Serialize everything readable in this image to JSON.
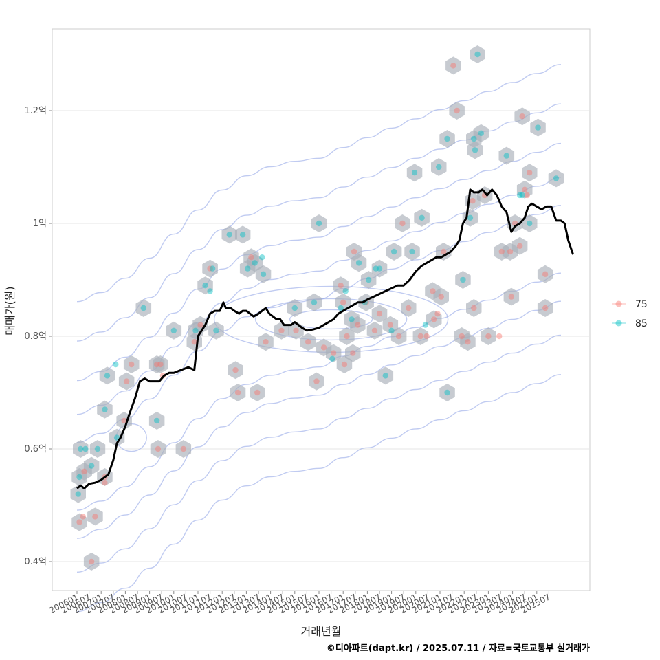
{
  "chart_data": {
    "type": "scatter",
    "xlabel": "거래년월",
    "ylabel": "매매가(원)",
    "caption": "©디아파트(dapt.kr) / 2025.07.11 / 자료=국토교통부 실거래가",
    "x_ticks": [
      "200601",
      "200607",
      "200701",
      "200707",
      "200801",
      "200807",
      "200901",
      "200907",
      "201001",
      "201007",
      "201101",
      "201107",
      "201201",
      "201207",
      "201301",
      "201307",
      "201401",
      "201407",
      "201501",
      "201507",
      "201601",
      "201607",
      "201701",
      "201707",
      "201801",
      "201807",
      "201901",
      "201907",
      "202001",
      "202007",
      "202101",
      "202107",
      "202201",
      "202207",
      "202301",
      "202307",
      "202401",
      "202407",
      "202501",
      "202507"
    ],
    "y_ticks": [
      {
        "value": 0.4,
        "label": "0.4억"
      },
      {
        "value": 0.6,
        "label": "0.6억"
      },
      {
        "value": 0.8,
        "label": "0.8억"
      },
      {
        "value": 1.0,
        "label": "1억"
      },
      {
        "value": 1.2,
        "label": "1.2억"
      }
    ],
    "ylim": [
      0.35,
      1.35
    ],
    "grid": true,
    "legend_position": "right",
    "colors": {
      "s75": "#F8766D",
      "s85": "#00BFC4",
      "hex": "#a9afb8",
      "hex_light": "#dbe8fb",
      "contour": "#8da0e6",
      "line": "#000000"
    },
    "series": [
      {
        "name": "75",
        "points": [
          [
            0.2,
            0.47
          ],
          [
            0.5,
            0.48
          ],
          [
            0.6,
            0.56
          ],
          [
            1.5,
            0.48
          ],
          [
            2.3,
            0.55
          ],
          [
            2.3,
            0.54
          ],
          [
            1.2,
            0.4
          ],
          [
            3.9,
            0.65
          ],
          [
            4.5,
            0.75
          ],
          [
            4.1,
            0.72
          ],
          [
            6.7,
            0.6
          ],
          [
            6.6,
            0.75
          ],
          [
            6.9,
            0.75
          ],
          [
            7.1,
            0.73
          ],
          [
            8.8,
            0.6
          ],
          [
            9.7,
            0.79
          ],
          [
            10.2,
            0.82
          ],
          [
            11.0,
            0.92
          ],
          [
            13.1,
            0.74
          ],
          [
            13.3,
            0.7
          ],
          [
            14.4,
            0.94
          ],
          [
            14.9,
            0.7
          ],
          [
            15.6,
            0.79
          ],
          [
            16.9,
            0.81
          ],
          [
            18.1,
            0.81
          ],
          [
            19.1,
            0.79
          ],
          [
            19.8,
            0.72
          ],
          [
            20.4,
            0.78
          ],
          [
            21.2,
            0.77
          ],
          [
            21.8,
            0.89
          ],
          [
            22.0,
            0.86
          ],
          [
            22.1,
            0.75
          ],
          [
            22.3,
            0.8
          ],
          [
            22.8,
            0.77
          ],
          [
            22.9,
            0.95
          ],
          [
            23.2,
            0.82
          ],
          [
            23.9,
            0.86
          ],
          [
            24.6,
            0.81
          ],
          [
            25.0,
            0.84
          ],
          [
            25.9,
            0.82
          ],
          [
            26.6,
            0.8
          ],
          [
            26.9,
            1.0
          ],
          [
            27.4,
            0.85
          ],
          [
            28.4,
            0.8
          ],
          [
            28.9,
            0.8
          ],
          [
            29.4,
            0.88
          ],
          [
            29.5,
            0.83
          ],
          [
            29.8,
            0.84
          ],
          [
            30.1,
            0.87
          ],
          [
            30.3,
            0.95
          ],
          [
            31.1,
            1.28
          ],
          [
            31.4,
            1.2
          ],
          [
            31.8,
            0.8
          ],
          [
            32.3,
            0.79
          ],
          [
            32.7,
            1.04
          ],
          [
            32.8,
            0.85
          ],
          [
            33.7,
            1.05
          ],
          [
            34.0,
            0.8
          ],
          [
            34.9,
            0.8
          ],
          [
            35.1,
            0.95
          ],
          [
            35.8,
            0.95
          ],
          [
            35.9,
            0.87
          ],
          [
            36.2,
            1.0
          ],
          [
            36.6,
            0.96
          ],
          [
            36.8,
            1.19
          ],
          [
            37.0,
            1.06
          ],
          [
            37.2,
            1.05
          ],
          [
            37.4,
            1.09
          ],
          [
            38.7,
            0.85
          ],
          [
            38.7,
            0.91
          ]
        ]
      },
      {
        "name": "85",
        "points": [
          [
            0.1,
            0.52
          ],
          [
            0.2,
            0.55
          ],
          [
            0.3,
            0.6
          ],
          [
            0.7,
            0.6
          ],
          [
            1.2,
            0.57
          ],
          [
            1.7,
            0.6
          ],
          [
            2.3,
            0.67
          ],
          [
            2.5,
            0.73
          ],
          [
            3.2,
            0.75
          ],
          [
            3.3,
            0.62
          ],
          [
            5.5,
            0.85
          ],
          [
            6.6,
            0.65
          ],
          [
            8.0,
            0.81
          ],
          [
            9.8,
            0.81
          ],
          [
            10.6,
            0.89
          ],
          [
            11.0,
            0.88
          ],
          [
            11.2,
            0.92
          ],
          [
            11.5,
            0.81
          ],
          [
            12.6,
            0.98
          ],
          [
            13.7,
            0.98
          ],
          [
            14.1,
            0.92
          ],
          [
            14.7,
            0.93
          ],
          [
            15.3,
            0.94
          ],
          [
            15.4,
            0.91
          ],
          [
            18.0,
            0.85
          ],
          [
            19.6,
            0.86
          ],
          [
            20.0,
            1.0
          ],
          [
            21.1,
            0.76
          ],
          [
            21.8,
            0.85
          ],
          [
            22.2,
            0.88
          ],
          [
            22.7,
            0.83
          ],
          [
            23.3,
            0.93
          ],
          [
            23.8,
            0.86
          ],
          [
            24.1,
            0.9
          ],
          [
            24.7,
            0.92
          ],
          [
            25.0,
            0.92
          ],
          [
            25.5,
            0.73
          ],
          [
            26.0,
            0.81
          ],
          [
            26.2,
            0.95
          ],
          [
            27.7,
            0.95
          ],
          [
            27.9,
            1.09
          ],
          [
            28.5,
            1.01
          ],
          [
            28.8,
            0.82
          ],
          [
            29.9,
            1.1
          ],
          [
            30.6,
            0.7
          ],
          [
            30.6,
            1.15
          ],
          [
            31.9,
            0.9
          ],
          [
            32.5,
            1.01
          ],
          [
            32.8,
            1.15
          ],
          [
            32.9,
            1.13
          ],
          [
            33.1,
            1.3
          ],
          [
            33.4,
            1.16
          ],
          [
            35.5,
            1.12
          ],
          [
            36.6,
            1.05
          ],
          [
            36.8,
            1.05
          ],
          [
            37.4,
            1.0
          ],
          [
            38.1,
            1.17
          ],
          [
            39.6,
            1.08
          ]
        ]
      }
    ],
    "trend_line": [
      [
        0.0,
        0.53
      ],
      [
        0.3,
        0.535
      ],
      [
        0.6,
        0.53
      ],
      [
        1.0,
        0.538
      ],
      [
        1.5,
        0.54
      ],
      [
        2.0,
        0.545
      ],
      [
        2.6,
        0.555
      ],
      [
        3.0,
        0.58
      ],
      [
        3.3,
        0.61
      ],
      [
        3.6,
        0.62
      ],
      [
        4.0,
        0.64
      ],
      [
        4.3,
        0.66
      ],
      [
        4.8,
        0.69
      ],
      [
        5.2,
        0.72
      ],
      [
        5.6,
        0.725
      ],
      [
        6.0,
        0.72
      ],
      [
        6.4,
        0.72
      ],
      [
        6.8,
        0.72
      ],
      [
        7.2,
        0.73
      ],
      [
        7.6,
        0.735
      ],
      [
        8.0,
        0.735
      ],
      [
        8.6,
        0.74
      ],
      [
        9.2,
        0.745
      ],
      [
        9.7,
        0.74
      ],
      [
        10.0,
        0.8
      ],
      [
        10.3,
        0.81
      ],
      [
        10.6,
        0.82
      ],
      [
        11.0,
        0.84
      ],
      [
        11.4,
        0.845
      ],
      [
        11.8,
        0.845
      ],
      [
        12.1,
        0.86
      ],
      [
        12.3,
        0.85
      ],
      [
        12.7,
        0.85
      ],
      [
        13.0,
        0.845
      ],
      [
        13.4,
        0.84
      ],
      [
        13.7,
        0.845
      ],
      [
        14.0,
        0.845
      ],
      [
        14.3,
        0.84
      ],
      [
        14.6,
        0.835
      ],
      [
        15.0,
        0.84
      ],
      [
        15.3,
        0.845
      ],
      [
        15.6,
        0.85
      ],
      [
        15.9,
        0.84
      ],
      [
        16.2,
        0.835
      ],
      [
        16.5,
        0.83
      ],
      [
        16.8,
        0.83
      ],
      [
        17.1,
        0.82
      ],
      [
        17.4,
        0.82
      ],
      [
        17.7,
        0.82
      ],
      [
        18.0,
        0.825
      ],
      [
        18.3,
        0.82
      ],
      [
        18.6,
        0.815
      ],
      [
        19.0,
        0.81
      ],
      [
        19.5,
        0.812
      ],
      [
        20.0,
        0.815
      ],
      [
        20.4,
        0.82
      ],
      [
        20.8,
        0.825
      ],
      [
        21.2,
        0.83
      ],
      [
        21.6,
        0.84
      ],
      [
        22.0,
        0.845
      ],
      [
        22.4,
        0.85
      ],
      [
        22.8,
        0.855
      ],
      [
        23.2,
        0.86
      ],
      [
        23.6,
        0.86
      ],
      [
        24.0,
        0.865
      ],
      [
        24.5,
        0.87
      ],
      [
        25.0,
        0.875
      ],
      [
        25.5,
        0.88
      ],
      [
        26.0,
        0.885
      ],
      [
        26.5,
        0.89
      ],
      [
        27.0,
        0.89
      ],
      [
        27.5,
        0.9
      ],
      [
        28.0,
        0.915
      ],
      [
        28.5,
        0.925
      ],
      [
        28.9,
        0.93
      ],
      [
        29.3,
        0.935
      ],
      [
        29.7,
        0.94
      ],
      [
        30.1,
        0.94
      ],
      [
        30.5,
        0.945
      ],
      [
        30.9,
        0.95
      ],
      [
        31.3,
        0.96
      ],
      [
        31.6,
        0.97
      ],
      [
        31.9,
        1.0
      ],
      [
        32.2,
        1.01
      ],
      [
        32.5,
        1.06
      ],
      [
        32.8,
        1.055
      ],
      [
        33.2,
        1.055
      ],
      [
        33.5,
        1.06
      ],
      [
        33.9,
        1.05
      ],
      [
        34.3,
        1.06
      ],
      [
        34.7,
        1.05
      ],
      [
        35.1,
        1.03
      ],
      [
        35.5,
        1.02
      ],
      [
        35.9,
        0.985
      ],
      [
        36.2,
        0.995
      ],
      [
        36.6,
        1.0
      ],
      [
        37.0,
        1.01
      ],
      [
        37.3,
        1.03
      ],
      [
        37.6,
        1.035
      ],
      [
        38.0,
        1.03
      ],
      [
        38.4,
        1.025
      ],
      [
        38.8,
        1.03
      ],
      [
        39.2,
        1.03
      ],
      [
        39.6,
        1.005
      ],
      [
        40.0,
        1.005
      ],
      [
        40.3,
        1.0
      ],
      [
        40.6,
        0.97
      ],
      [
        41.0,
        0.945
      ]
    ]
  }
}
